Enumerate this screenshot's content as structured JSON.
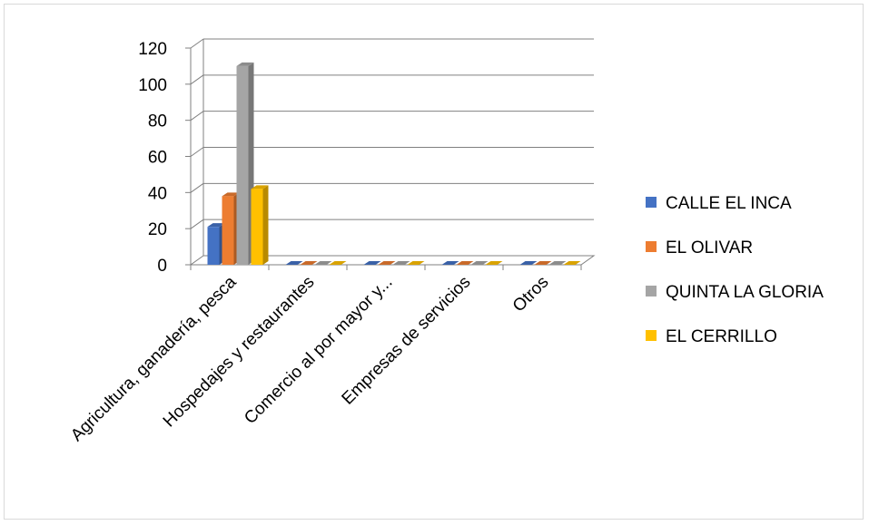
{
  "chart_data": {
    "type": "bar",
    "style": "3d-clustered-column",
    "title": "",
    "xlabel": "",
    "ylabel": "",
    "categories": [
      "Agricultura, ganadería, pesca",
      "Hospedajes y restaurantes",
      "Comercio al por mayor y...",
      "Empresas de servicios",
      "Otros"
    ],
    "series": [
      {
        "name": "CALLE EL INCA",
        "color": "#4472C4",
        "values": [
          21,
          0,
          0,
          0,
          0
        ]
      },
      {
        "name": "EL OLIVAR",
        "color": "#ED7D31",
        "values": [
          38,
          0,
          0,
          0,
          0
        ]
      },
      {
        "name": "QUINTA LA GLORIA",
        "color": "#A5A5A5",
        "values": [
          110,
          0,
          0,
          0,
          0
        ]
      },
      {
        "name": "EL CERRILLO",
        "color": "#FFC000",
        "values": [
          42,
          0,
          0,
          0,
          0
        ]
      }
    ],
    "ylim": [
      0,
      120
    ],
    "yticks": [
      0,
      20,
      40,
      60,
      80,
      100,
      120
    ],
    "grid": true,
    "legend_position": "right"
  }
}
